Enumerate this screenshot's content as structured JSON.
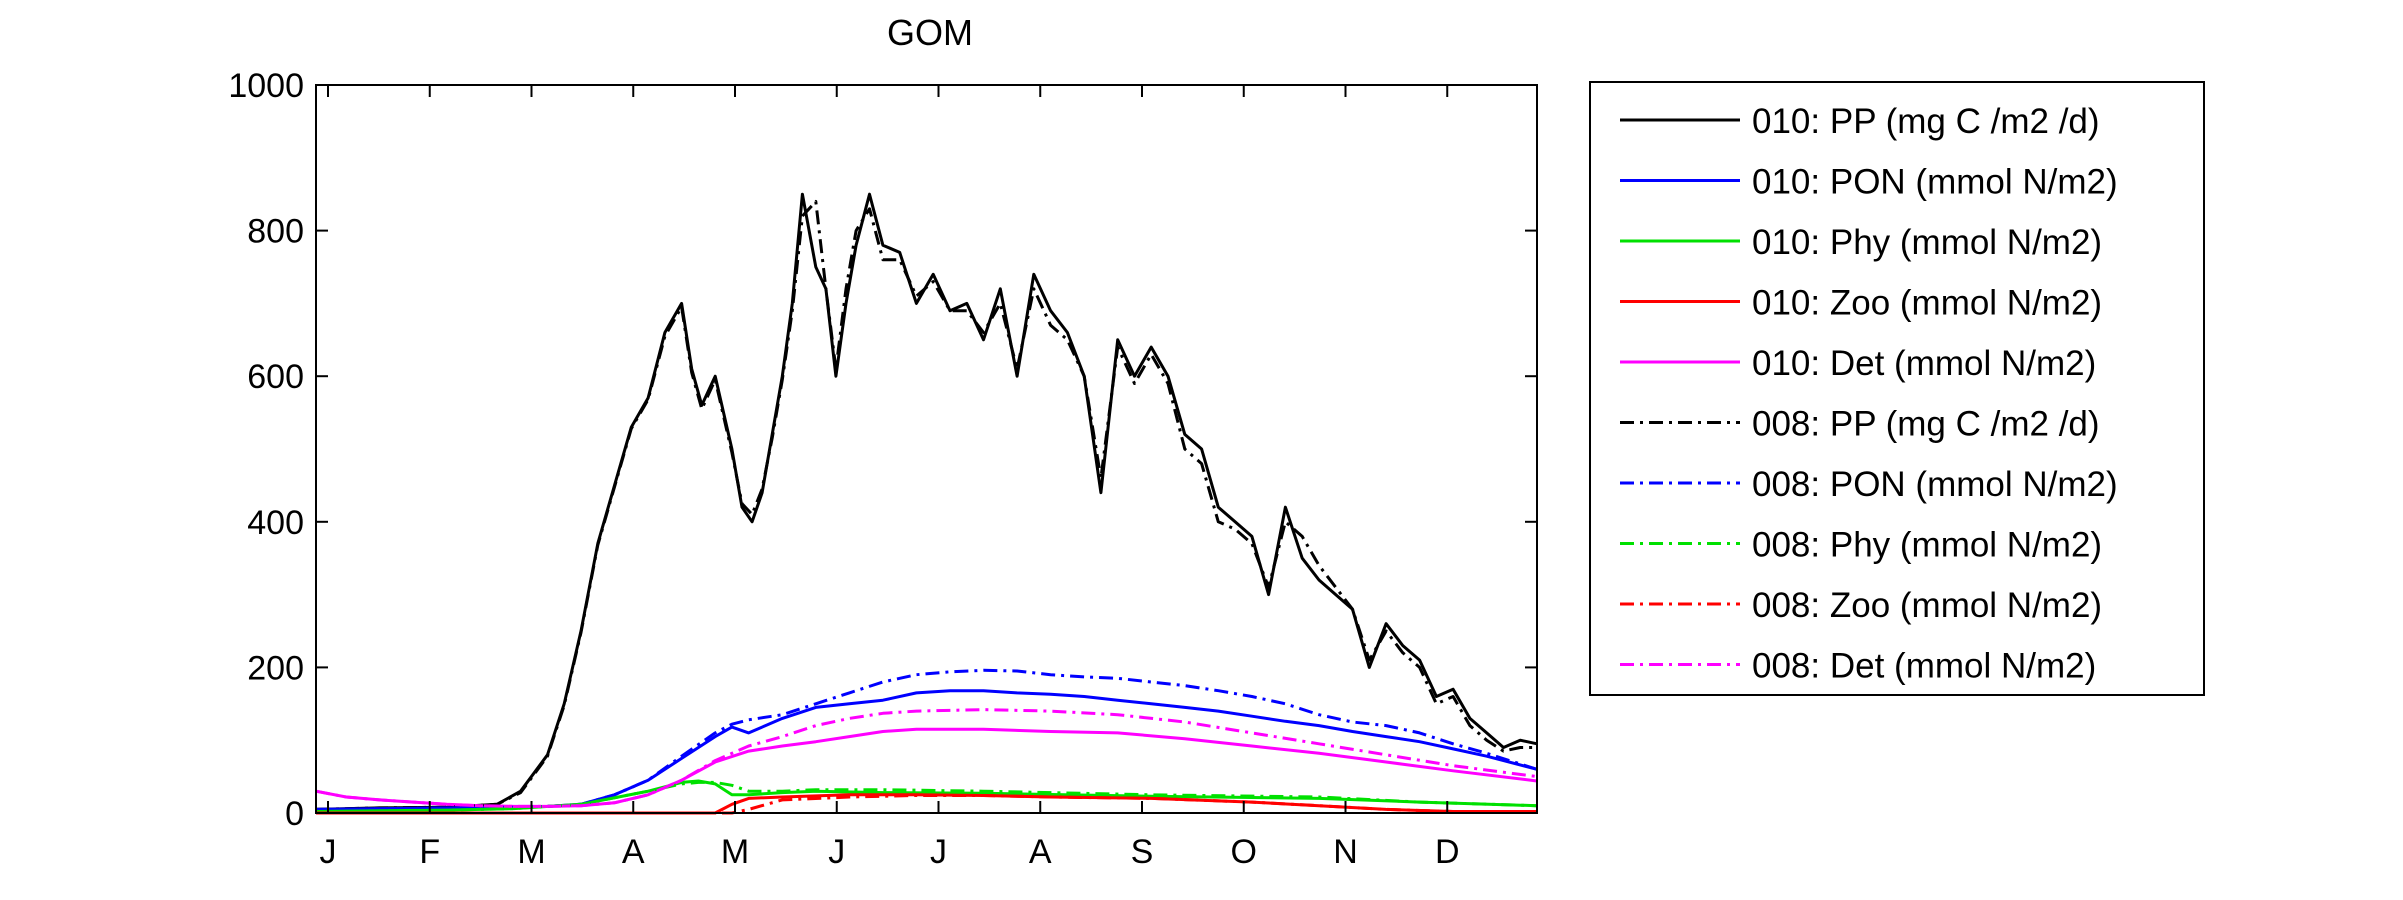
{
  "chart_data": {
    "type": "line",
    "title": "GOM",
    "xlabel": "",
    "ylabel": "",
    "ylim": [
      0,
      1000
    ],
    "y_ticks": [
      0,
      200,
      400,
      600,
      800,
      1000
    ],
    "x_months": [
      "J",
      "F",
      "M",
      "A",
      "M",
      "J",
      "J",
      "A",
      "S",
      "O",
      "N",
      "D"
    ],
    "xlim_day": [
      1,
      365
    ],
    "legend_position": "outside-right",
    "grid": false,
    "series": [
      {
        "name": "010: PP (mg C /m2 /d)",
        "color": "#000000",
        "style": "solid",
        "x": [
          1,
          20,
          40,
          55,
          62,
          70,
          75,
          80,
          85,
          90,
          95,
          100,
          105,
          110,
          113,
          116,
          120,
          125,
          128,
          131,
          134,
          137,
          140,
          143,
          146,
          150,
          153,
          156,
          159,
          162,
          166,
          170,
          175,
          180,
          185,
          190,
          195,
          200,
          205,
          210,
          215,
          220,
          225,
          230,
          235,
          240,
          245,
          250,
          255,
          260,
          265,
          270,
          275,
          280,
          285,
          290,
          295,
          300,
          305,
          310,
          315,
          320,
          325,
          330,
          335,
          340,
          345,
          350,
          355,
          360,
          365
        ],
        "y": [
          5,
          7,
          8,
          12,
          30,
          80,
          150,
          250,
          370,
          450,
          530,
          570,
          660,
          700,
          610,
          560,
          600,
          500,
          420,
          400,
          440,
          520,
          600,
          700,
          850,
          750,
          720,
          600,
          700,
          780,
          850,
          780,
          770,
          700,
          740,
          690,
          700,
          650,
          720,
          600,
          740,
          690,
          660,
          600,
          440,
          650,
          600,
          640,
          600,
          520,
          500,
          420,
          400,
          380,
          300,
          420,
          350,
          320,
          300,
          280,
          200,
          260,
          230,
          210,
          160,
          170,
          130,
          110,
          90,
          100,
          95
        ]
      },
      {
        "name": "010: PON (mmol N/m2)",
        "color": "#0000ff",
        "style": "solid",
        "x": [
          1,
          20,
          40,
          60,
          70,
          80,
          90,
          100,
          110,
          120,
          125,
          130,
          140,
          150,
          160,
          170,
          180,
          190,
          200,
          210,
          220,
          230,
          240,
          250,
          260,
          270,
          280,
          290,
          300,
          310,
          320,
          330,
          340,
          350,
          365
        ],
        "y": [
          5,
          6,
          7,
          8,
          9,
          12,
          25,
          45,
          75,
          105,
          118,
          110,
          130,
          145,
          150,
          155,
          165,
          168,
          168,
          165,
          163,
          160,
          155,
          150,
          145,
          140,
          133,
          126,
          120,
          112,
          105,
          98,
          88,
          78,
          60
        ]
      },
      {
        "name": "010: Phy (mmol N/m2)",
        "color": "#00e000",
        "style": "solid",
        "x": [
          1,
          20,
          40,
          60,
          80,
          100,
          110,
          115,
          120,
          125,
          130,
          140,
          150,
          170,
          200,
          250,
          300,
          330,
          365
        ],
        "y": [
          2,
          3,
          4,
          6,
          12,
          30,
          42,
          44,
          40,
          25,
          25,
          28,
          30,
          28,
          27,
          23,
          20,
          15,
          10
        ]
      },
      {
        "name": "010: Zoo (mmol N/m2)",
        "color": "#ff0000",
        "style": "solid",
        "x": [
          1,
          60,
          120,
          125,
          130,
          140,
          160,
          180,
          200,
          220,
          250,
          280,
          300,
          320,
          340,
          365
        ],
        "y": [
          0,
          0,
          0,
          12,
          20,
          22,
          25,
          25,
          24,
          22,
          20,
          15,
          10,
          5,
          2,
          2
        ]
      },
      {
        "name": "010: Det (mmol N/m2)",
        "color": "#ff00ff",
        "style": "solid",
        "x": [
          1,
          10,
          20,
          30,
          40,
          50,
          60,
          70,
          80,
          90,
          100,
          110,
          120,
          130,
          140,
          150,
          160,
          170,
          180,
          200,
          220,
          240,
          260,
          280,
          300,
          320,
          340,
          365
        ],
        "y": [
          30,
          22,
          18,
          15,
          12,
          10,
          9,
          9,
          10,
          14,
          25,
          45,
          70,
          85,
          92,
          98,
          105,
          112,
          115,
          115,
          112,
          110,
          102,
          92,
          82,
          70,
          58,
          44
        ]
      },
      {
        "name": "008: PP (mg C /m2 /d)",
        "color": "#000000",
        "style": "dashdot",
        "x": [
          1,
          20,
          40,
          55,
          62,
          70,
          75,
          80,
          85,
          90,
          95,
          100,
          105,
          110,
          113,
          116,
          120,
          125,
          128,
          131,
          134,
          137,
          140,
          143,
          146,
          150,
          153,
          156,
          159,
          162,
          166,
          170,
          175,
          180,
          185,
          190,
          195,
          200,
          205,
          210,
          215,
          220,
          225,
          230,
          235,
          240,
          245,
          250,
          255,
          260,
          265,
          270,
          275,
          280,
          285,
          290,
          295,
          300,
          305,
          310,
          315,
          320,
          325,
          330,
          335,
          340,
          345,
          350,
          355,
          360,
          365
        ],
        "y": [
          5,
          7,
          8,
          12,
          28,
          78,
          148,
          248,
          368,
          448,
          528,
          568,
          655,
          695,
          605,
          555,
          595,
          495,
          425,
          410,
          445,
          515,
          595,
          690,
          820,
          840,
          720,
          610,
          720,
          800,
          830,
          760,
          760,
          710,
          730,
          690,
          690,
          660,
          700,
          610,
          720,
          670,
          650,
          600,
          460,
          640,
          590,
          630,
          590,
          500,
          480,
          400,
          390,
          370,
          310,
          400,
          380,
          340,
          310,
          280,
          210,
          250,
          220,
          200,
          150,
          160,
          120,
          100,
          85,
          90,
          90
        ]
      },
      {
        "name": "008: PON (mmol N/m2)",
        "color": "#0000ff",
        "style": "dashdot",
        "x": [
          1,
          20,
          40,
          60,
          70,
          80,
          90,
          100,
          110,
          120,
          125,
          130,
          140,
          150,
          160,
          170,
          180,
          190,
          200,
          210,
          220,
          230,
          240,
          250,
          260,
          270,
          280,
          290,
          300,
          310,
          320,
          330,
          340,
          350,
          365
        ],
        "y": [
          5,
          6,
          7,
          8,
          9,
          12,
          25,
          45,
          78,
          110,
          122,
          128,
          135,
          150,
          165,
          180,
          190,
          194,
          196,
          195,
          190,
          187,
          185,
          180,
          175,
          168,
          160,
          150,
          135,
          125,
          120,
          110,
          95,
          82,
          60
        ]
      },
      {
        "name": "008: Phy (mmol N/m2)",
        "color": "#00e000",
        "style": "dashdot",
        "x": [
          1,
          20,
          40,
          60,
          80,
          100,
          110,
          115,
          120,
          125,
          130,
          140,
          150,
          170,
          200,
          250,
          300,
          330,
          365
        ],
        "y": [
          2,
          3,
          4,
          6,
          12,
          30,
          40,
          42,
          42,
          38,
          30,
          30,
          32,
          32,
          30,
          25,
          22,
          15,
          10
        ]
      },
      {
        "name": "008: Zoo (mmol N/m2)",
        "color": "#ff0000",
        "style": "dashdot",
        "x": [
          1,
          60,
          125,
          130,
          140,
          160,
          180,
          200,
          220,
          250,
          280,
          300,
          320,
          340,
          365
        ],
        "y": [
          0,
          0,
          0,
          5,
          18,
          22,
          24,
          24,
          22,
          20,
          15,
          10,
          5,
          2,
          2
        ]
      },
      {
        "name": "008: Det (mmol N/m2)",
        "color": "#ff00ff",
        "style": "dashdot",
        "x": [
          1,
          10,
          20,
          30,
          40,
          50,
          60,
          70,
          80,
          90,
          100,
          110,
          120,
          130,
          140,
          150,
          160,
          170,
          180,
          200,
          220,
          240,
          260,
          280,
          300,
          320,
          340,
          365
        ],
        "y": [
          30,
          22,
          18,
          15,
          12,
          10,
          9,
          9,
          10,
          14,
          25,
          45,
          72,
          92,
          105,
          120,
          130,
          137,
          140,
          142,
          140,
          135,
          125,
          110,
          95,
          80,
          65,
          50
        ]
      }
    ]
  }
}
